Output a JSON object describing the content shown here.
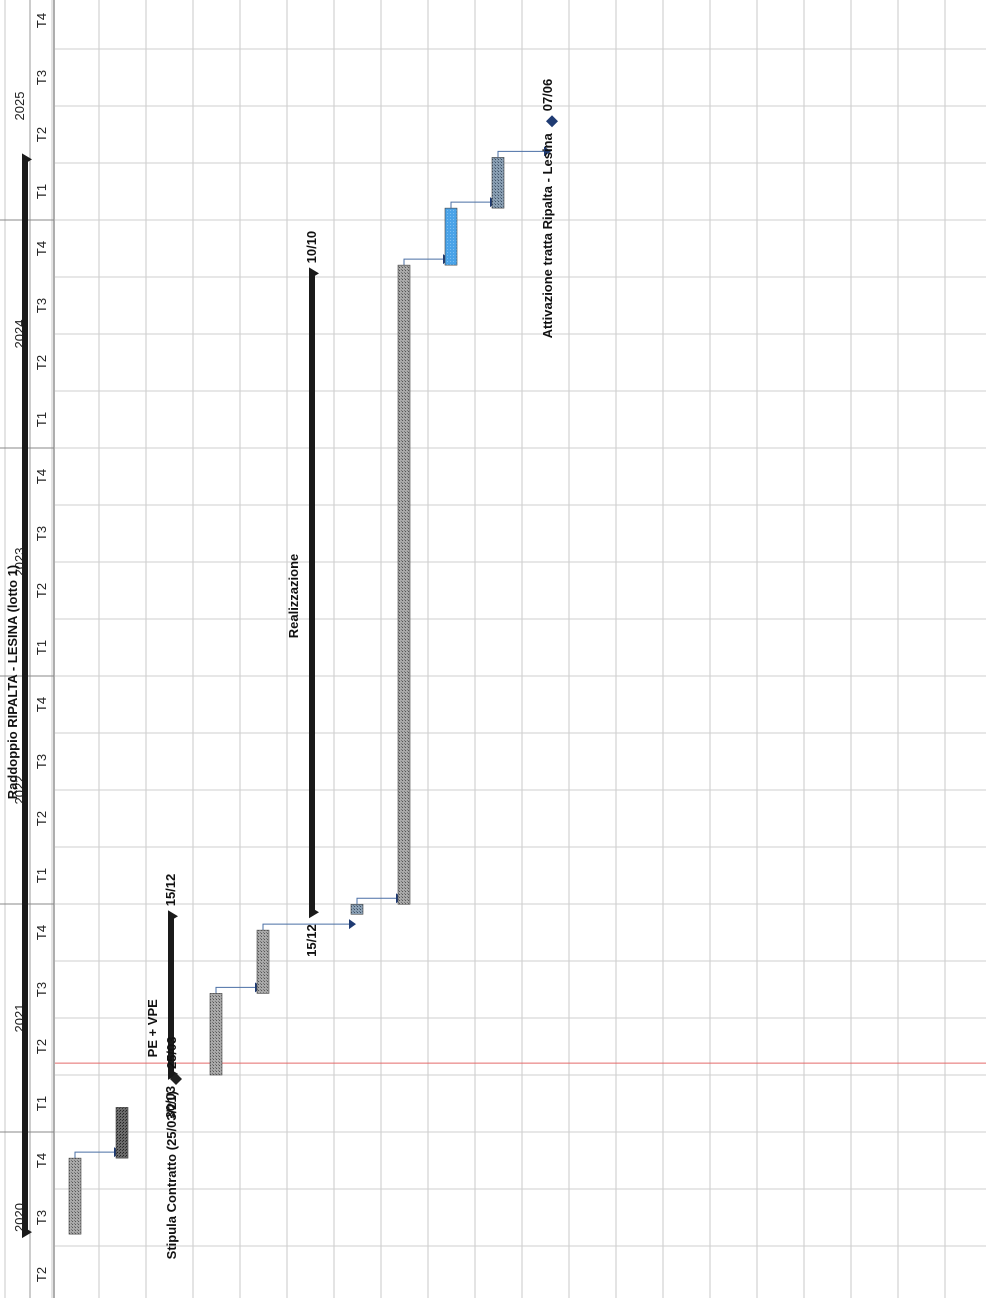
{
  "chart_data": {
    "type": "gantt",
    "orientation": "rotated-90-ccw",
    "timescale": {
      "years": [
        {
          "year": "2020",
          "quarters": [
            "T2",
            "T3",
            "T4"
          ]
        },
        {
          "year": "2021",
          "quarters": [
            "T1",
            "T2",
            "T3",
            "T4"
          ]
        },
        {
          "year": "2022",
          "quarters": [
            "T1",
            "T2",
            "T3",
            "T4"
          ]
        },
        {
          "year": "2023",
          "quarters": [
            "T1",
            "T2",
            "T3",
            "T4"
          ]
        },
        {
          "year": "2024",
          "quarters": [
            "T1",
            "T2",
            "T3",
            "T4"
          ]
        },
        {
          "year": "2025",
          "quarters": [
            "T1",
            "T2",
            "T3",
            "T4"
          ]
        }
      ]
    },
    "current_date": "2021-04-20",
    "summaries": [
      {
        "id": "s1",
        "name": "Raddoppio RIPALTA - LESINA (lotto 1)",
        "start": "2020-07-20",
        "end": "2025-04-10"
      },
      {
        "id": "s2",
        "name": "PE + VPE",
        "start": "2021-03-30",
        "end": "2021-12-15",
        "start_label": "30/03",
        "end_label": "15/12"
      },
      {
        "id": "s3",
        "name": "Realizzazione",
        "start": "2021-12-15",
        "end": "2024-10-10",
        "start_label": "15/12",
        "end_label": "10/10"
      }
    ],
    "tasks": [
      {
        "id": "t1",
        "start": "2020-07-20",
        "end": "2020-11-20",
        "style": "hatch-gray"
      },
      {
        "id": "t2",
        "start": "2020-11-20",
        "end": "2021-02-10",
        "style": "hatch-dark"
      },
      {
        "id": "t3",
        "start": "2021-04-01",
        "end": "2021-08-10",
        "style": "hatch-gray"
      },
      {
        "id": "t4",
        "start": "2021-08-10",
        "end": "2021-11-20",
        "style": "hatch-gray"
      },
      {
        "id": "t5",
        "start": "2021-12-15",
        "end": "2021-12-31",
        "style": "hatch-blue-gray"
      },
      {
        "id": "t6",
        "start": "2021-12-31",
        "end": "2024-10-20",
        "style": "hatch-gray"
      },
      {
        "id": "t7",
        "start": "2024-10-20",
        "end": "2025-01-20",
        "style": "blue"
      },
      {
        "id": "t8",
        "start": "2025-01-20",
        "end": "2025-04-10",
        "style": "hatch-blue-gray"
      }
    ],
    "milestones": [
      {
        "id": "m1",
        "name": "Stipula Contratto (25/03/21)",
        "date": "2021-03-25",
        "date_label": "25/03"
      },
      {
        "id": "m2",
        "name": "Attivazione tratta Ripalta - Lesina",
        "date": "2025-06-07",
        "date_label": "07/06"
      }
    ],
    "links": [
      {
        "from": "t1",
        "to": "t2"
      },
      {
        "from": "t3",
        "to": "t4"
      },
      {
        "from": "t4",
        "to": "t5"
      },
      {
        "from": "t5",
        "to": "t6"
      },
      {
        "from": "t6",
        "to": "t7"
      },
      {
        "from": "t7",
        "to": "t8"
      },
      {
        "from": "t8",
        "to": "m2"
      }
    ]
  }
}
